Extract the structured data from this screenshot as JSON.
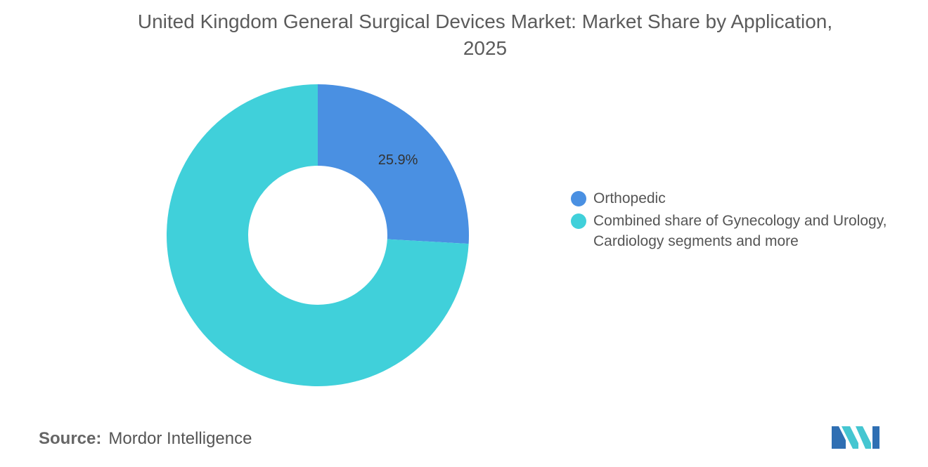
{
  "title": "United Kingdom General Surgical Devices Market: Market Share by Application, 2025",
  "source": {
    "label": "Source:",
    "value": "Mordor Intelligence"
  },
  "logo_icon": "mordor-intelligence-logo",
  "chart_data": {
    "type": "pie",
    "variant": "donut",
    "title": "United Kingdom General Surgical Devices Market: Market Share by Application, 2025",
    "legend_placement": "right",
    "slices": [
      {
        "name": "Orthopedic",
        "value": 25.9,
        "label": "25.9%",
        "color": "#4a90e2"
      },
      {
        "name": "Combined share of Gynecology and Urology, Cardiology segments and more",
        "value": 74.1,
        "label": "",
        "color": "#40d0da"
      }
    ]
  }
}
